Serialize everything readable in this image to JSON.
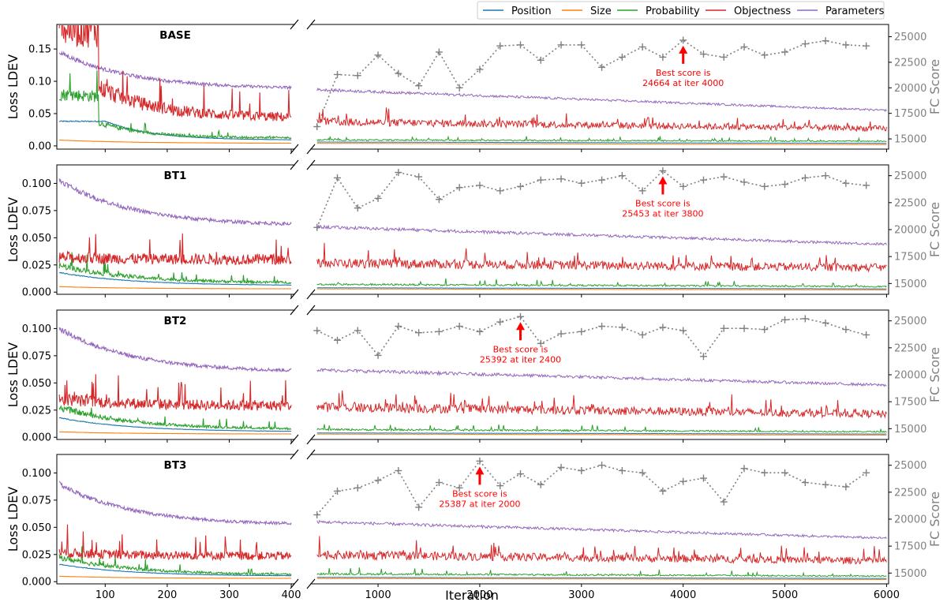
{
  "chart_data": {
    "type": "line",
    "xlabel": "Iteration",
    "ylabel_left": "Loss LDEV",
    "ylabel_right": "FC Score",
    "x_ticks_left": [
      100,
      200,
      300,
      400
    ],
    "x_ticks_right": [
      1000,
      2000,
      3000,
      4000,
      5000,
      6000
    ],
    "xlim_left": [
      22,
      405
    ],
    "xlim_right": [
      340,
      6020
    ],
    "right_ticks": [
      15000,
      17500,
      20000,
      22500,
      25000
    ],
    "right_tick_labels": [
      "15000",
      "17500",
      "20000",
      "22500",
      "25000"
    ],
    "legend": {
      "placement": "top-right",
      "entries": [
        {
          "name": "Position",
          "color": "#1f77b4"
        },
        {
          "name": "Size",
          "color": "#ff7f0e"
        },
        {
          "name": "Probability",
          "color": "#2ca02c"
        },
        {
          "name": "Objectness",
          "color": "#d62728"
        },
        {
          "name": "Parameters",
          "color": "#9467bd"
        }
      ]
    },
    "score_iters": [
      400,
      600,
      800,
      1000,
      1200,
      1400,
      1600,
      1800,
      2000,
      2200,
      2400,
      2600,
      2800,
      3000,
      3200,
      3400,
      3600,
      3800,
      4000,
      4200,
      4400,
      4600,
      4800,
      5000,
      5200,
      5400,
      5600,
      5800
    ],
    "panels": [
      {
        "title": "BASE",
        "ylim": [
          -0.005,
          0.188
        ],
        "left_ticks": [
          0.0,
          0.05,
          0.1,
          0.15
        ],
        "left_tick_labels": [
          "0.00",
          "0.05",
          "0.10",
          "0.15"
        ],
        "score_ylim": [
          14000,
          26200
        ],
        "losses_left": {
          "Position": {
            "start": 0.038,
            "end": 0.009
          },
          "Size": {
            "start": 0.009,
            "end": 0.004
          },
          "Probability": {
            "start": 0.078,
            "end": 0.012
          },
          "Objectness": {
            "start": 0.17,
            "end": 0.04
          },
          "Parameters": {
            "start": 0.145,
            "end": 0.088
          }
        },
        "losses_right": {
          "Position": {
            "start": 0.006,
            "end": 0.004
          },
          "Size": {
            "start": 0.004,
            "end": 0.002
          },
          "Probability": {
            "start": 0.009,
            "end": 0.007
          },
          "Objectness": {
            "start": 0.035,
            "end": 0.025
          },
          "Parameters": {
            "start": 0.087,
            "end": 0.055
          }
        },
        "fc_score": [
          16200,
          21300,
          21200,
          23200,
          21400,
          20200,
          23500,
          20000,
          21800,
          24100,
          24200,
          22700,
          24200,
          24200,
          22000,
          23000,
          24000,
          23000,
          24664,
          23300,
          23000,
          24000,
          23200,
          23500,
          24300,
          24600,
          24200,
          24100
        ],
        "best": {
          "iter": 4000,
          "score": 24664,
          "line1": "Best score is",
          "line2": "24664 at iter 4000"
        }
      },
      {
        "title": "BT1",
        "ylim": [
          -0.002,
          0.117
        ],
        "left_ticks": [
          0.0,
          0.025,
          0.05,
          0.075,
          0.1
        ],
        "left_tick_labels": [
          "0.000",
          "0.025",
          "0.050",
          "0.075",
          "0.100"
        ],
        "score_ylim": [
          14000,
          26000
        ],
        "losses_left": {
          "Position": {
            "start": 0.018,
            "end": 0.006
          },
          "Size": {
            "start": 0.005,
            "end": 0.003
          },
          "Probability": {
            "start": 0.024,
            "end": 0.008
          },
          "Objectness": {
            "start": 0.03,
            "end": 0.028
          },
          "Parameters": {
            "start": 0.103,
            "end": 0.061
          }
        },
        "losses_right": {
          "Position": {
            "start": 0.004,
            "end": 0.003
          },
          "Size": {
            "start": 0.003,
            "end": 0.002
          },
          "Probability": {
            "start": 0.007,
            "end": 0.005
          },
          "Objectness": {
            "start": 0.025,
            "end": 0.021
          },
          "Parameters": {
            "start": 0.06,
            "end": 0.044
          }
        },
        "fc_score": [
          20200,
          24800,
          22000,
          22900,
          25300,
          24900,
          22800,
          23900,
          24100,
          23600,
          24000,
          24600,
          24700,
          24300,
          24600,
          25000,
          23600,
          25453,
          24000,
          24600,
          24900,
          24400,
          24000,
          24200,
          24800,
          25000,
          24300,
          24100
        ],
        "best": {
          "iter": 3800,
          "score": 25453,
          "line1": "Best score is",
          "line2": "25453 at iter 3800"
        }
      },
      {
        "title": "BT2",
        "ylim": [
          -0.002,
          0.117
        ],
        "left_ticks": [
          0.0,
          0.025,
          0.05,
          0.075,
          0.1
        ],
        "left_tick_labels": [
          "0.000",
          "0.025",
          "0.050",
          "0.075",
          "0.100"
        ],
        "score_ylim": [
          14000,
          26000
        ],
        "losses_left": {
          "Position": {
            "start": 0.018,
            "end": 0.005
          },
          "Size": {
            "start": 0.005,
            "end": 0.003
          },
          "Probability": {
            "start": 0.027,
            "end": 0.007
          },
          "Objectness": {
            "start": 0.033,
            "end": 0.027
          },
          "Parameters": {
            "start": 0.1,
            "end": 0.06
          }
        },
        "losses_right": {
          "Position": {
            "start": 0.004,
            "end": 0.003
          },
          "Size": {
            "start": 0.003,
            "end": 0.002
          },
          "Probability": {
            "start": 0.007,
            "end": 0.005
          },
          "Objectness": {
            "start": 0.026,
            "end": 0.02
          },
          "Parameters": {
            "start": 0.062,
            "end": 0.048
          }
        },
        "fc_score": [
          24100,
          23200,
          24100,
          21800,
          24500,
          23900,
          24000,
          24500,
          24000,
          24900,
          25392,
          22900,
          23800,
          24000,
          24500,
          24400,
          23700,
          24400,
          24100,
          21700,
          24300,
          24300,
          24200,
          25100,
          25200,
          24800,
          24200,
          23700
        ],
        "best": {
          "iter": 2400,
          "score": 25392,
          "line1": "Best score is",
          "line2": "25392 at iter 2400"
        }
      },
      {
        "title": "BT3",
        "ylim": [
          -0.002,
          0.117
        ],
        "left_ticks": [
          0.0,
          0.025,
          0.05,
          0.075,
          0.1
        ],
        "left_tick_labels": [
          "0.000",
          "0.025",
          "0.050",
          "0.075",
          "0.100"
        ],
        "score_ylim": [
          14000,
          26000
        ],
        "losses_left": {
          "Position": {
            "start": 0.016,
            "end": 0.005
          },
          "Size": {
            "start": 0.005,
            "end": 0.003
          },
          "Probability": {
            "start": 0.022,
            "end": 0.006
          },
          "Objectness": {
            "start": 0.025,
            "end": 0.022
          },
          "Parameters": {
            "start": 0.09,
            "end": 0.052
          }
        },
        "losses_right": {
          "Position": {
            "start": 0.004,
            "end": 0.003
          },
          "Size": {
            "start": 0.003,
            "end": 0.002
          },
          "Probability": {
            "start": 0.007,
            "end": 0.005
          },
          "Objectness": {
            "start": 0.023,
            "end": 0.018
          },
          "Parameters": {
            "start": 0.055,
            "end": 0.04
          }
        },
        "fc_score": [
          20400,
          22600,
          22900,
          23600,
          24500,
          21100,
          23400,
          22900,
          25387,
          23100,
          24200,
          23200,
          24800,
          24500,
          25000,
          24500,
          24300,
          22600,
          23500,
          23800,
          21600,
          24700,
          24300,
          24300,
          23400,
          23200,
          23000,
          24300
        ],
        "best": {
          "iter": 2000,
          "score": 25387,
          "line1": "Best score is",
          "line2": "25387 at iter 2000"
        }
      }
    ]
  }
}
